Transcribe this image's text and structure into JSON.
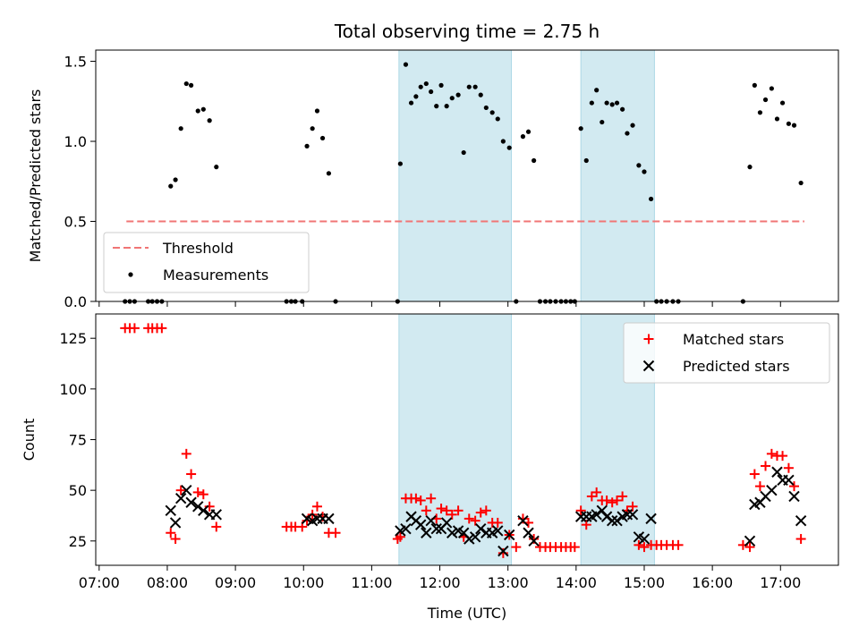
{
  "chart_data": [
    {
      "type": "scatter",
      "title": "Total observing time = 2.75 h",
      "ylabel": "Matched/Predicted stars",
      "xlabel": "",
      "x_unit": "hours UTC",
      "xlim": [
        6.95,
        17.85
      ],
      "ylim": [
        0,
        1.57
      ],
      "yticks": [
        0,
        0.5,
        1.0,
        1.5
      ],
      "ytick_labels": [
        "0.0",
        "0.5",
        "1.0",
        "1.5"
      ],
      "threshold": {
        "name": "Threshold",
        "value": 0.5,
        "x_range": [
          7.4,
          17.35
        ],
        "color": "#f07575"
      },
      "shaded_intervals": [
        [
          11.4,
          13.05
        ],
        [
          14.07,
          15.15
        ]
      ],
      "shade_color": "#add8e6",
      "legend": {
        "placement": "lower-left",
        "entries": [
          "Threshold",
          "Measurements"
        ]
      },
      "series": [
        {
          "name": "Measurements",
          "color": "#000000",
          "points": [
            [
              7.38,
              0
            ],
            [
              7.45,
              0
            ],
            [
              7.52,
              0
            ],
            [
              7.72,
              0
            ],
            [
              7.78,
              0
            ],
            [
              7.85,
              0
            ],
            [
              7.92,
              0
            ],
            [
              8.05,
              0.72
            ],
            [
              8.12,
              0.76
            ],
            [
              8.2,
              1.08
            ],
            [
              8.28,
              1.36
            ],
            [
              8.35,
              1.35
            ],
            [
              8.45,
              1.19
            ],
            [
              8.53,
              1.2
            ],
            [
              8.62,
              1.13
            ],
            [
              8.72,
              0.84
            ],
            [
              9.75,
              0
            ],
            [
              9.82,
              0
            ],
            [
              9.88,
              0
            ],
            [
              9.98,
              0
            ],
            [
              10.05,
              0.97
            ],
            [
              10.13,
              1.08
            ],
            [
              10.2,
              1.19
            ],
            [
              10.28,
              1.02
            ],
            [
              10.37,
              0.8
            ],
            [
              10.47,
              0
            ],
            [
              11.38,
              0
            ],
            [
              11.42,
              0.86
            ],
            [
              11.5,
              1.48
            ],
            [
              11.58,
              1.24
            ],
            [
              11.65,
              1.28
            ],
            [
              11.72,
              1.34
            ],
            [
              11.8,
              1.36
            ],
            [
              11.87,
              1.31
            ],
            [
              11.95,
              1.22
            ],
            [
              12.02,
              1.35
            ],
            [
              12.1,
              1.22
            ],
            [
              12.18,
              1.27
            ],
            [
              12.27,
              1.29
            ],
            [
              12.35,
              0.93
            ],
            [
              12.43,
              1.34
            ],
            [
              12.52,
              1.34
            ],
            [
              12.6,
              1.29
            ],
            [
              12.68,
              1.21
            ],
            [
              12.77,
              1.18
            ],
            [
              12.85,
              1.14
            ],
            [
              12.93,
              1.0
            ],
            [
              13.02,
              0.96
            ],
            [
              13.12,
              0
            ],
            [
              13.22,
              1.03
            ],
            [
              13.3,
              1.06
            ],
            [
              13.38,
              0.88
            ],
            [
              13.47,
              0
            ],
            [
              13.55,
              0
            ],
            [
              13.62,
              0
            ],
            [
              13.7,
              0
            ],
            [
              13.78,
              0
            ],
            [
              13.85,
              0
            ],
            [
              13.92,
              0
            ],
            [
              13.98,
              0
            ],
            [
              14.07,
              1.08
            ],
            [
              14.15,
              0.88
            ],
            [
              14.23,
              1.24
            ],
            [
              14.3,
              1.32
            ],
            [
              14.38,
              1.12
            ],
            [
              14.45,
              1.24
            ],
            [
              14.53,
              1.23
            ],
            [
              14.6,
              1.24
            ],
            [
              14.68,
              1.2
            ],
            [
              14.75,
              1.05
            ],
            [
              14.83,
              1.1
            ],
            [
              14.92,
              0.85
            ],
            [
              15.0,
              0.81
            ],
            [
              15.1,
              0.64
            ],
            [
              15.18,
              0
            ],
            [
              15.25,
              0
            ],
            [
              15.33,
              0
            ],
            [
              15.42,
              0
            ],
            [
              15.5,
              0
            ],
            [
              16.45,
              0
            ],
            [
              16.55,
              0.84
            ],
            [
              16.62,
              1.35
            ],
            [
              16.7,
              1.18
            ],
            [
              16.78,
              1.26
            ],
            [
              16.87,
              1.33
            ],
            [
              16.95,
              1.14
            ],
            [
              17.03,
              1.24
            ],
            [
              17.12,
              1.11
            ],
            [
              17.2,
              1.1
            ],
            [
              17.3,
              0.74
            ]
          ]
        }
      ]
    },
    {
      "type": "scatter",
      "title": "",
      "ylabel": "Count",
      "xlabel": "Time (UTC)",
      "x_unit": "hours UTC",
      "xlim": [
        6.95,
        17.85
      ],
      "ylim": [
        13,
        137
      ],
      "yticks": [
        25,
        50,
        75,
        100,
        125
      ],
      "ytick_labels": [
        "25",
        "50",
        "75",
        "100",
        "125"
      ],
      "xticks": [
        7,
        8,
        9,
        10,
        11,
        12,
        13,
        14,
        15,
        16,
        17
      ],
      "xtick_labels": [
        "07:00",
        "08:00",
        "09:00",
        "10:00",
        "11:00",
        "12:00",
        "13:00",
        "14:00",
        "15:00",
        "16:00",
        "17:00"
      ],
      "shaded_intervals": [
        [
          11.4,
          13.05
        ],
        [
          14.07,
          15.15
        ]
      ],
      "shade_color": "#add8e6",
      "legend": {
        "placement": "upper-right",
        "entries": [
          "Matched stars",
          "Predicted stars"
        ]
      },
      "series": [
        {
          "name": "Matched stars",
          "marker": "plus",
          "color": "#ff0000",
          "points": [
            [
              7.38,
              130
            ],
            [
              7.45,
              130
            ],
            [
              7.52,
              130
            ],
            [
              7.72,
              130
            ],
            [
              7.78,
              130
            ],
            [
              7.85,
              130
            ],
            [
              7.92,
              130
            ],
            [
              8.05,
              29
            ],
            [
              8.12,
              26
            ],
            [
              8.2,
              50
            ],
            [
              8.28,
              68
            ],
            [
              8.35,
              58
            ],
            [
              8.45,
              49
            ],
            [
              8.53,
              48
            ],
            [
              8.62,
              42
            ],
            [
              8.72,
              32
            ],
            [
              9.75,
              32
            ],
            [
              9.82,
              32
            ],
            [
              9.88,
              32
            ],
            [
              9.98,
              32
            ],
            [
              10.05,
              35
            ],
            [
              10.13,
              38
            ],
            [
              10.2,
              42
            ],
            [
              10.28,
              37
            ],
            [
              10.37,
              29
            ],
            [
              10.47,
              29
            ],
            [
              11.38,
              26
            ],
            [
              11.42,
              27
            ],
            [
              11.5,
              46
            ],
            [
              11.58,
              46
            ],
            [
              11.65,
              46
            ],
            [
              11.72,
              45
            ],
            [
              11.8,
              40
            ],
            [
              11.87,
              46
            ],
            [
              11.95,
              36
            ],
            [
              12.02,
              41
            ],
            [
              12.1,
              40
            ],
            [
              12.18,
              38
            ],
            [
              12.27,
              40
            ],
            [
              12.35,
              27
            ],
            [
              12.43,
              36
            ],
            [
              12.52,
              35
            ],
            [
              12.6,
              39
            ],
            [
              12.68,
              40
            ],
            [
              12.77,
              34
            ],
            [
              12.85,
              34
            ],
            [
              12.93,
              19
            ],
            [
              13.02,
              28
            ],
            [
              13.12,
              22
            ],
            [
              13.22,
              36
            ],
            [
              13.3,
              34
            ],
            [
              13.38,
              26
            ],
            [
              13.47,
              22
            ],
            [
              13.55,
              22
            ],
            [
              13.62,
              22
            ],
            [
              13.7,
              22
            ],
            [
              13.78,
              22
            ],
            [
              13.85,
              22
            ],
            [
              13.92,
              22
            ],
            [
              13.98,
              22
            ],
            [
              14.07,
              40
            ],
            [
              14.15,
              33
            ],
            [
              14.23,
              47
            ],
            [
              14.3,
              49
            ],
            [
              14.38,
              45
            ],
            [
              14.45,
              45
            ],
            [
              14.53,
              44
            ],
            [
              14.6,
              45
            ],
            [
              14.68,
              47
            ],
            [
              14.75,
              40
            ],
            [
              14.83,
              42
            ],
            [
              14.92,
              23
            ],
            [
              15.0,
              22
            ],
            [
              15.1,
              23
            ],
            [
              15.18,
              23
            ],
            [
              15.25,
              23
            ],
            [
              15.33,
              23
            ],
            [
              15.42,
              23
            ],
            [
              15.5,
              23
            ],
            [
              16.45,
              23
            ],
            [
              16.55,
              22
            ],
            [
              16.62,
              58
            ],
            [
              16.7,
              52
            ],
            [
              16.78,
              62
            ],
            [
              16.87,
              68
            ],
            [
              16.95,
              67
            ],
            [
              17.03,
              67
            ],
            [
              17.12,
              61
            ],
            [
              17.2,
              52
            ],
            [
              17.3,
              26
            ]
          ]
        },
        {
          "name": "Predicted stars",
          "marker": "x",
          "color": "#000000",
          "points": [
            [
              8.05,
              40
            ],
            [
              8.12,
              34
            ],
            [
              8.2,
              46
            ],
            [
              8.28,
              50
            ],
            [
              8.35,
              44
            ],
            [
              8.45,
              42
            ],
            [
              8.53,
              40
            ],
            [
              8.62,
              38
            ],
            [
              8.72,
              38
            ],
            [
              10.05,
              36
            ],
            [
              10.13,
              35
            ],
            [
              10.2,
              36
            ],
            [
              10.28,
              36
            ],
            [
              10.37,
              36
            ],
            [
              11.42,
              30
            ],
            [
              11.5,
              31
            ],
            [
              11.58,
              37
            ],
            [
              11.65,
              35
            ],
            [
              11.72,
              33
            ],
            [
              11.8,
              29
            ],
            [
              11.87,
              35
            ],
            [
              11.95,
              31
            ],
            [
              12.02,
              31
            ],
            [
              12.1,
              34
            ],
            [
              12.18,
              29
            ],
            [
              12.27,
              30
            ],
            [
              12.35,
              29
            ],
            [
              12.43,
              26
            ],
            [
              12.52,
              27
            ],
            [
              12.6,
              31
            ],
            [
              12.68,
              29
            ],
            [
              12.77,
              29
            ],
            [
              12.85,
              30
            ],
            [
              12.93,
              20
            ],
            [
              13.02,
              28
            ],
            [
              13.22,
              35
            ],
            [
              13.3,
              29
            ],
            [
              13.38,
              25
            ],
            [
              14.07,
              37
            ],
            [
              14.15,
              37
            ],
            [
              14.23,
              37
            ],
            [
              14.3,
              38
            ],
            [
              14.38,
              40
            ],
            [
              14.45,
              37
            ],
            [
              14.53,
              35
            ],
            [
              14.6,
              35
            ],
            [
              14.68,
              37
            ],
            [
              14.75,
              38
            ],
            [
              14.83,
              38
            ],
            [
              14.92,
              27
            ],
            [
              15.0,
              26
            ],
            [
              15.1,
              36
            ],
            [
              16.55,
              25
            ],
            [
              16.62,
              43
            ],
            [
              16.7,
              44
            ],
            [
              16.78,
              47
            ],
            [
              16.87,
              50
            ],
            [
              16.95,
              59
            ],
            [
              17.03,
              55
            ],
            [
              17.12,
              55
            ],
            [
              17.2,
              47
            ],
            [
              17.3,
              35
            ]
          ]
        }
      ]
    }
  ]
}
